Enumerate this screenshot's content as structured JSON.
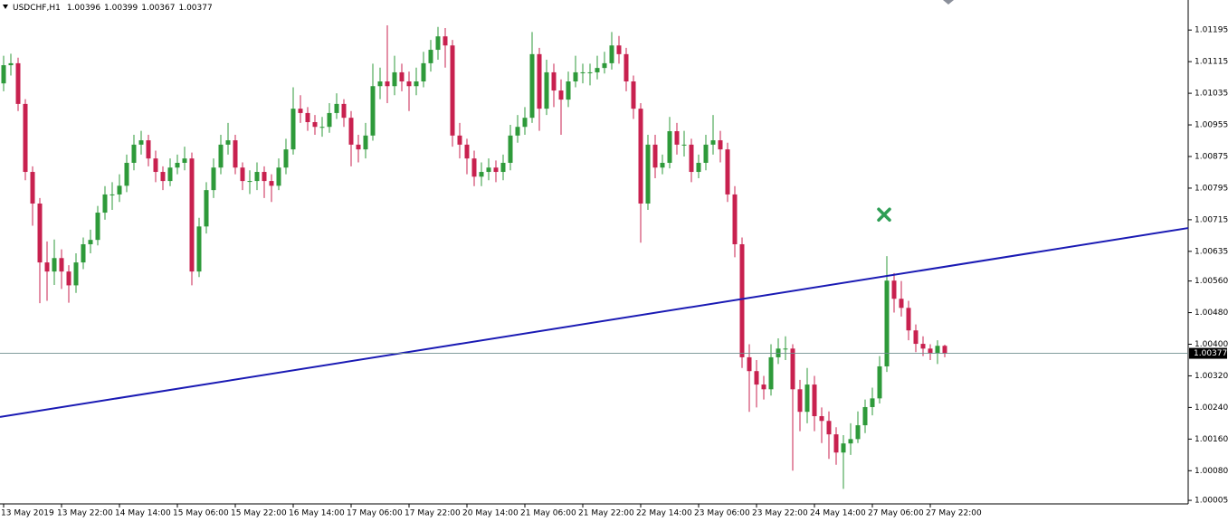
{
  "chart_data": {
    "type": "candlestick",
    "title": "USDCHF,H1",
    "categories": [
      "13 May 2019",
      null,
      null,
      null,
      null,
      null,
      null,
      null,
      "13 May 22:00",
      null,
      null,
      null,
      null,
      null,
      null,
      null,
      "14 May 14:00",
      null,
      null,
      null,
      null,
      null,
      null,
      null,
      "15 May 06:00",
      null,
      null,
      null,
      null,
      null,
      null,
      null,
      "15 May 22:00",
      null,
      null,
      null,
      null,
      null,
      null,
      null,
      "16 May 14:00",
      null,
      null,
      null,
      null,
      null,
      null,
      null,
      "17 May 06:00",
      null,
      null,
      null,
      null,
      null,
      null,
      null,
      "17 May 22:00",
      null,
      null,
      null,
      null,
      null,
      null,
      null,
      "20 May 14:00",
      null,
      null,
      null,
      null,
      null,
      null,
      null,
      "21 May 06:00",
      null,
      null,
      null,
      null,
      null,
      null,
      null,
      "21 May 22:00",
      null,
      null,
      null,
      null,
      null,
      null,
      null,
      "22 May 14:00",
      null,
      null,
      null,
      null,
      null,
      null,
      null,
      "23 May 06:00",
      null,
      null,
      null,
      null,
      null,
      null,
      null,
      "23 May 22:00",
      null,
      null,
      null,
      null,
      null,
      null,
      null,
      "24 May 14:00",
      null,
      null,
      null,
      null,
      null,
      null,
      null,
      "27 May 06:00",
      null,
      null,
      null,
      null,
      null,
      null,
      null,
      "27 May 22:00",
      null,
      null
    ],
    "open": [
      1.0106,
      1.01106,
      1.01111,
      1.01008,
      1.00836,
      1.00756,
      1.00607,
      1.00584,
      1.00618,
      1.00584,
      1.00549,
      1.00607,
      1.00653,
      1.00664,
      1.00733,
      1.00779,
      1.00779,
      1.00801,
      1.00859,
      1.00905,
      1.00916,
      1.0087,
      1.00836,
      1.00813,
      1.00847,
      1.00859,
      1.0087,
      1.00584,
      1.00698,
      1.0079,
      1.00847,
      1.00905,
      1.00916,
      1.00847,
      1.00813,
      1.00813,
      1.00836,
      1.00813,
      1.00801,
      1.00847,
      1.00893,
      1.00996,
      1.00985,
      1.00962,
      1.0095,
      1.0095,
      1.00985,
      1.01008,
      1.00973,
      1.00905,
      1.00893,
      1.00928,
      1.01053,
      1.01065,
      1.01053,
      1.01088,
      1.01065,
      1.01053,
      1.01065,
      1.01111,
      1.01145,
      1.01179,
      1.01156,
      1.00928,
      1.00905,
      1.0087,
      1.00824,
      1.00836,
      1.00847,
      1.00836,
      1.00859,
      1.00928,
      1.0095,
      1.00973,
      1.01134,
      1.00996,
      1.01088,
      1.01042,
      1.01019,
      1.01065,
      1.01088,
      1.01088,
      1.01088,
      1.01099,
      1.01111,
      1.01156,
      1.01134,
      1.01065,
      1.00996,
      1.00756,
      1.00905,
      1.00847,
      1.00859,
      1.00939,
      1.00905,
      1.00905,
      1.00836,
      1.00859,
      1.00905,
      1.00916,
      1.00893,
      1.00779,
      1.00653,
      1.00367,
      1.00332,
      1.00298,
      1.00286,
      1.00367,
      1.00389,
      1.00389,
      1.00286,
      1.00229,
      1.00298,
      1.00218,
      1.00206,
      1.00172,
      1.00126,
      1.00149,
      1.0016,
      1.00195,
      1.00241,
      1.00263,
      1.00344,
      1.00561,
      1.00515,
      1.00492,
      1.00435,
      1.00401,
      1.00389,
      1.00378,
      1.00396
    ],
    "high": [
      1.0113,
      1.01135,
      1.01125,
      1.0102,
      1.0085,
      1.0077,
      1.0066,
      1.00665,
      1.0064,
      1.006,
      1.0063,
      1.0067,
      1.0069,
      1.0075,
      1.008,
      1.0081,
      1.0083,
      1.0088,
      1.0093,
      1.0094,
      1.0093,
      1.0089,
      1.0085,
      1.0087,
      1.0088,
      1.009,
      1.00885,
      1.0072,
      1.0081,
      1.0087,
      1.0093,
      1.0096,
      1.0093,
      1.0086,
      1.0084,
      1.0086,
      1.0085,
      1.0083,
      1.0087,
      1.0092,
      1.0105,
      1.0103,
      1.01,
      1.0098,
      1.00975,
      1.0101,
      1.01035,
      1.0102,
      1.0099,
      1.0093,
      1.0096,
      1.0111,
      1.011,
      1.01207,
      1.0113,
      1.0111,
      1.0109,
      1.011,
      1.0114,
      1.0117,
      1.01203,
      1.012,
      1.0117,
      1.0096,
      1.0092,
      1.0089,
      1.0086,
      1.0087,
      1.00865,
      1.0088,
      1.00955,
      1.0098,
      1.01,
      1.0119,
      1.0115,
      1.0112,
      1.0111,
      1.0107,
      1.0109,
      1.0113,
      1.0111,
      1.0111,
      1.0113,
      1.0114,
      1.0119,
      1.0118,
      1.0115,
      1.0108,
      1.0101,
      1.0093,
      1.0093,
      1.0088,
      1.00975,
      1.0096,
      1.0094,
      1.0092,
      1.0088,
      1.0093,
      1.0098,
      1.0094,
      1.0091,
      1.008,
      1.0067,
      1.004,
      1.0036,
      1.0032,
      1.004,
      1.00415,
      1.0042,
      1.004,
      1.0031,
      1.0034,
      1.0032,
      1.0024,
      1.0023,
      1.0019,
      1.0017,
      1.002,
      1.0023,
      1.0026,
      1.0029,
      1.0037,
      1.00623,
      1.0058,
      1.0056,
      1.0051,
      1.0045,
      1.0042,
      1.004,
      1.0041,
      1.00399
    ],
    "low": [
      1.0104,
      1.0108,
      1.0099,
      1.00815,
      1.007,
      1.00504,
      1.0051,
      1.0055,
      1.0054,
      1.00505,
      1.0053,
      1.0059,
      1.0063,
      1.0065,
      1.00715,
      1.0074,
      1.0076,
      1.00785,
      1.0084,
      1.0088,
      1.0085,
      1.0081,
      1.0079,
      1.008,
      1.0083,
      1.0084,
      1.00549,
      1.0057,
      1.0068,
      1.0077,
      1.0083,
      1.0088,
      1.0083,
      1.0079,
      1.0078,
      1.0079,
      1.0077,
      1.0076,
      1.0079,
      1.0083,
      1.0088,
      1.0096,
      1.0094,
      1.0093,
      1.00925,
      1.00935,
      1.0097,
      1.0095,
      1.0085,
      1.0086,
      1.0087,
      1.00915,
      1.0102,
      1.0101,
      1.0103,
      1.0104,
      1.0099,
      1.0103,
      1.0105,
      1.0109,
      1.0112,
      1.011,
      1.009,
      1.0087,
      1.0083,
      1.008,
      1.008,
      1.00815,
      1.0081,
      1.00815,
      1.0084,
      1.0091,
      1.0093,
      1.0096,
      1.0094,
      1.0098,
      1.01,
      1.0093,
      1.01,
      1.0105,
      1.0106,
      1.01055,
      1.0107,
      1.01085,
      1.01095,
      1.0111,
      1.0104,
      1.0097,
      1.00657,
      1.0074,
      1.0082,
      1.0083,
      1.00845,
      1.0088,
      1.00875,
      1.0081,
      1.0082,
      1.0084,
      1.0088,
      1.0086,
      1.0076,
      1.0062,
      1.0034,
      1.00229,
      1.0024,
      1.0026,
      1.0027,
      1.0035,
      1.0036,
      1.0008,
      1.0018,
      1.002,
      1.0018,
      1.0015,
      1.0011,
      1.00095,
      1.00034,
      1.0012,
      1.0015,
      1.00175,
      1.0022,
      1.0025,
      1.0033,
      1.0048,
      1.0047,
      1.0041,
      1.0038,
      1.0037,
      1.0036,
      1.0035,
      1.00367
    ],
    "close": [
      1.01106,
      1.01111,
      1.01008,
      1.00836,
      1.00756,
      1.00607,
      1.00584,
      1.00618,
      1.00584,
      1.00549,
      1.00607,
      1.00653,
      1.00664,
      1.00733,
      1.00779,
      1.00779,
      1.00801,
      1.00859,
      1.00905,
      1.00916,
      1.0087,
      1.00836,
      1.00813,
      1.00847,
      1.00859,
      1.0087,
      1.00584,
      1.00698,
      1.0079,
      1.00847,
      1.00905,
      1.00916,
      1.00847,
      1.00813,
      1.00813,
      1.00836,
      1.00813,
      1.00801,
      1.00847,
      1.00893,
      1.00996,
      1.00985,
      1.00962,
      1.0095,
      1.0095,
      1.00985,
      1.01008,
      1.00973,
      1.00905,
      1.00893,
      1.00928,
      1.01053,
      1.01065,
      1.01053,
      1.01088,
      1.01065,
      1.01053,
      1.01065,
      1.01111,
      1.01145,
      1.01179,
      1.01156,
      1.00928,
      1.00905,
      1.0087,
      1.00824,
      1.00836,
      1.00847,
      1.00836,
      1.00859,
      1.00928,
      1.0095,
      1.00973,
      1.01134,
      1.00996,
      1.01088,
      1.01042,
      1.01019,
      1.01065,
      1.01088,
      1.01088,
      1.01088,
      1.01099,
      1.01111,
      1.01156,
      1.01134,
      1.01065,
      1.00996,
      1.00756,
      1.00905,
      1.00847,
      1.00859,
      1.00939,
      1.00905,
      1.00905,
      1.00836,
      1.00859,
      1.00905,
      1.00916,
      1.00893,
      1.00779,
      1.00653,
      1.00367,
      1.00332,
      1.00298,
      1.00286,
      1.00367,
      1.00389,
      1.00389,
      1.00286,
      1.00229,
      1.00298,
      1.00218,
      1.00206,
      1.00172,
      1.00126,
      1.00149,
      1.0016,
      1.00195,
      1.00241,
      1.00263,
      1.00344,
      1.00561,
      1.00515,
      1.00492,
      1.00435,
      1.00401,
      1.00389,
      1.00378,
      1.00396,
      1.00377
    ],
    "up_color": "#2e9a3a",
    "down_color": "#c8214f",
    "ylim": [
      0.99996,
      1.01271
    ],
    "yticks": [
      1.01195,
      1.01115,
      1.01035,
      1.00955,
      1.00875,
      1.00795,
      1.00715,
      1.00635,
      {
        "value": 1.0056,
        "label": "1.00560"
      },
      {
        "value": 1.0048,
        "label": "1.00480"
      },
      {
        "value": 1.004,
        "label": "1.00400"
      },
      {
        "value": 1.0032,
        "label": "1.00320"
      },
      {
        "value": 1.0024,
        "label": "1.00240"
      },
      {
        "value": 1.0016,
        "label": "1.00160"
      },
      {
        "value": 1.0008,
        "label": "1.00080"
      },
      1.00005
    ],
    "trendline": [
      1.00216,
      1.00694
    ],
    "trendline_color": "#1a1ab4",
    "marker_value": 1.00728,
    "marker_color": "#2e9e55"
  }
}
